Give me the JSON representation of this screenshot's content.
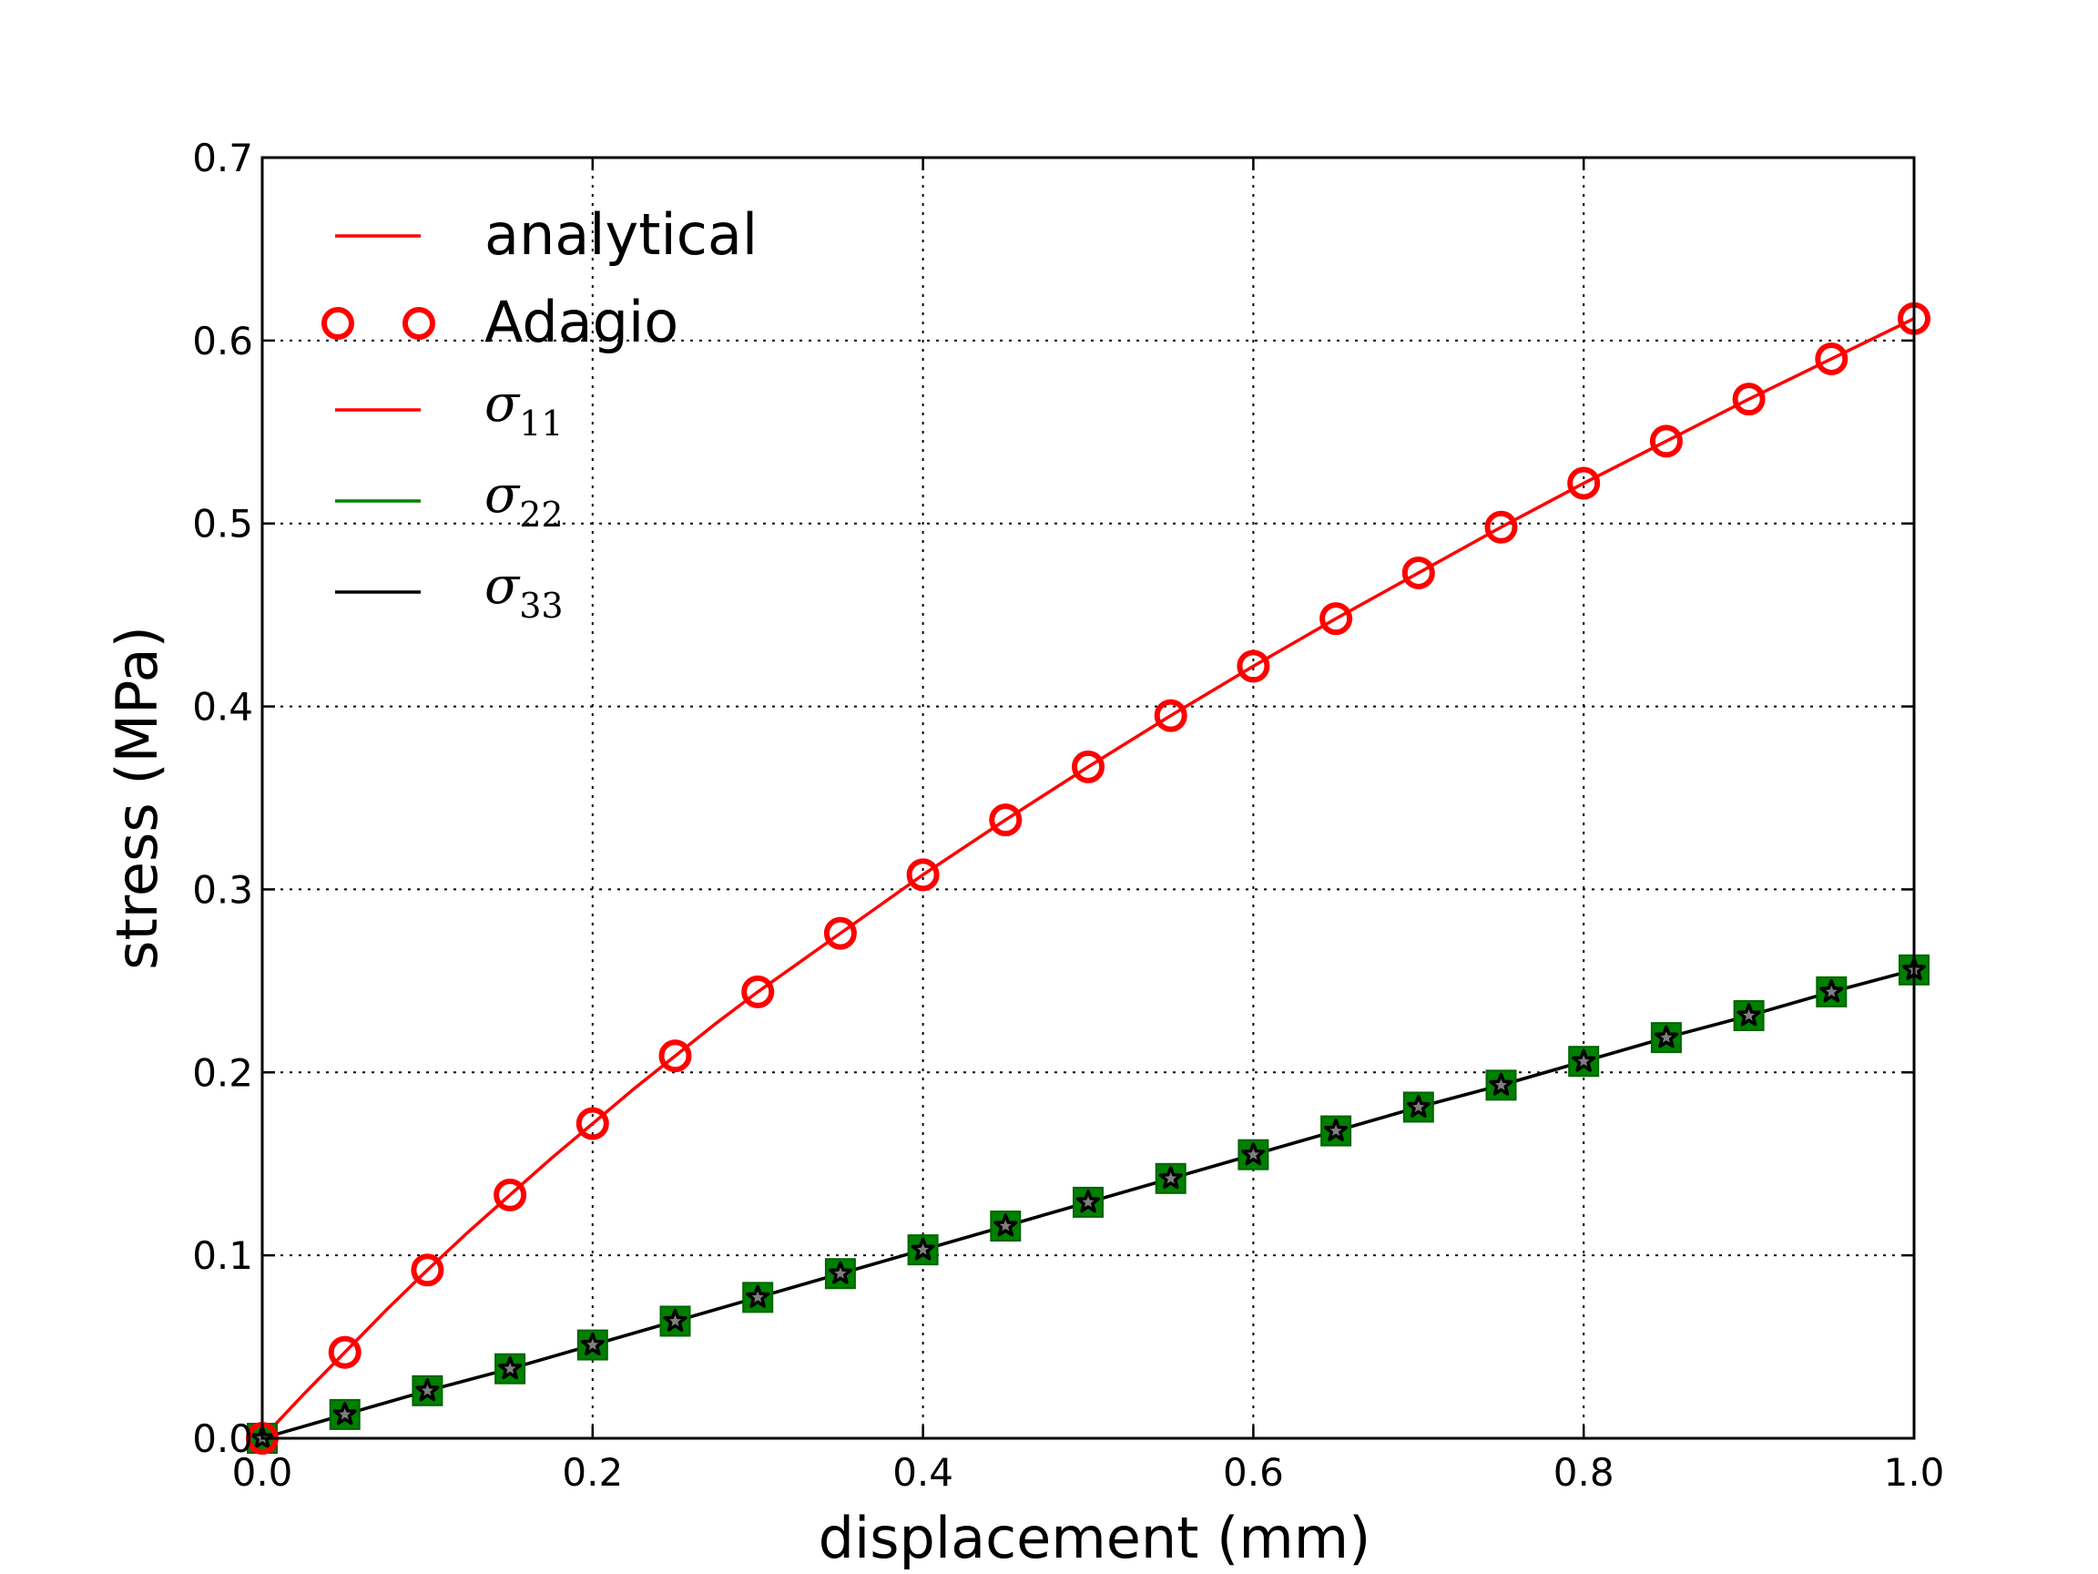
{
  "chart_data": {
    "type": "line",
    "title": "",
    "xlabel": "displacement (mm)",
    "ylabel": "stress (MPa)",
    "xlim": [
      0.0,
      1.0
    ],
    "ylim": [
      0.0,
      0.7
    ],
    "xticks": [
      "0.0",
      "0.2",
      "0.4",
      "0.6",
      "0.8",
      "1.0"
    ],
    "yticks": [
      "0.0",
      "0.1",
      "0.2",
      "0.3",
      "0.4",
      "0.5",
      "0.6",
      "0.7"
    ],
    "grid": true,
    "legend_position": "top-left",
    "legend": [
      {
        "label": "analytical",
        "style": "line",
        "color": "#ff0000"
      },
      {
        "label": "Adagio",
        "style": "circle-marker",
        "color": "#ff0000"
      },
      {
        "label": "σ",
        "subscript": "11",
        "style": "line",
        "color": "#ff0000"
      },
      {
        "label": "σ",
        "subscript": "22",
        "style": "line",
        "color": "#008000"
      },
      {
        "label": "σ",
        "subscript": "33",
        "style": "line",
        "color": "#000000"
      }
    ],
    "x": [
      0.0,
      0.05,
      0.1,
      0.15,
      0.2,
      0.25,
      0.3,
      0.35,
      0.4,
      0.45,
      0.5,
      0.55,
      0.6,
      0.65,
      0.7,
      0.75,
      0.8,
      0.85,
      0.9,
      0.95,
      1.0
    ],
    "series": [
      {
        "name": "analytical σ11",
        "kind": "line",
        "color": "#ff0000",
        "x": [
          0.0,
          0.025,
          0.05,
          0.075,
          0.1,
          0.125,
          0.15,
          0.175,
          0.2,
          0.225,
          0.25,
          0.275,
          0.3,
          0.325,
          0.35,
          0.375,
          0.4,
          0.45,
          0.5,
          0.55,
          0.6,
          0.65,
          0.7,
          0.75,
          0.8,
          0.85,
          0.9,
          0.95,
          1.0
        ],
        "values": [
          0.0,
          0.024,
          0.047,
          0.07,
          0.092,
          0.113,
          0.133,
          0.153,
          0.172,
          0.191,
          0.209,
          0.227,
          0.244,
          0.26,
          0.276,
          0.292,
          0.308,
          0.338,
          0.367,
          0.395,
          0.422,
          0.448,
          0.473,
          0.498,
          0.522,
          0.545,
          0.568,
          0.59,
          0.612
        ]
      },
      {
        "name": "Adagio σ11",
        "kind": "circle-marker",
        "color": "#ff0000",
        "values": [
          0.0,
          0.047,
          0.092,
          0.133,
          0.172,
          0.209,
          0.244,
          0.276,
          0.308,
          0.338,
          0.367,
          0.395,
          0.422,
          0.448,
          0.473,
          0.498,
          0.522,
          0.545,
          0.568,
          0.59,
          0.612
        ]
      },
      {
        "name": "analytical σ22",
        "kind": "line",
        "color": "#008000",
        "values": [
          0.0,
          0.013,
          0.026,
          0.038,
          0.051,
          0.064,
          0.077,
          0.09,
          0.103,
          0.116,
          0.129,
          0.142,
          0.155,
          0.168,
          0.181,
          0.193,
          0.206,
          0.219,
          0.231,
          0.244,
          0.256
        ]
      },
      {
        "name": "Adagio σ22",
        "kind": "square-marker",
        "color": "#008000",
        "values": [
          0.0,
          0.013,
          0.026,
          0.038,
          0.051,
          0.064,
          0.077,
          0.09,
          0.103,
          0.116,
          0.129,
          0.142,
          0.155,
          0.168,
          0.181,
          0.193,
          0.206,
          0.219,
          0.231,
          0.244,
          0.256
        ]
      },
      {
        "name": "analytical σ33",
        "kind": "line",
        "color": "#000000",
        "values": [
          0.0,
          0.013,
          0.026,
          0.038,
          0.051,
          0.064,
          0.077,
          0.09,
          0.103,
          0.116,
          0.129,
          0.142,
          0.155,
          0.168,
          0.181,
          0.193,
          0.206,
          0.219,
          0.231,
          0.244,
          0.256
        ]
      },
      {
        "name": "Adagio σ33",
        "kind": "star-marker",
        "color": "#000000",
        "values": [
          0.0,
          0.013,
          0.026,
          0.038,
          0.051,
          0.064,
          0.077,
          0.09,
          0.103,
          0.116,
          0.129,
          0.142,
          0.155,
          0.168,
          0.181,
          0.193,
          0.206,
          0.219,
          0.231,
          0.244,
          0.256
        ]
      }
    ]
  }
}
